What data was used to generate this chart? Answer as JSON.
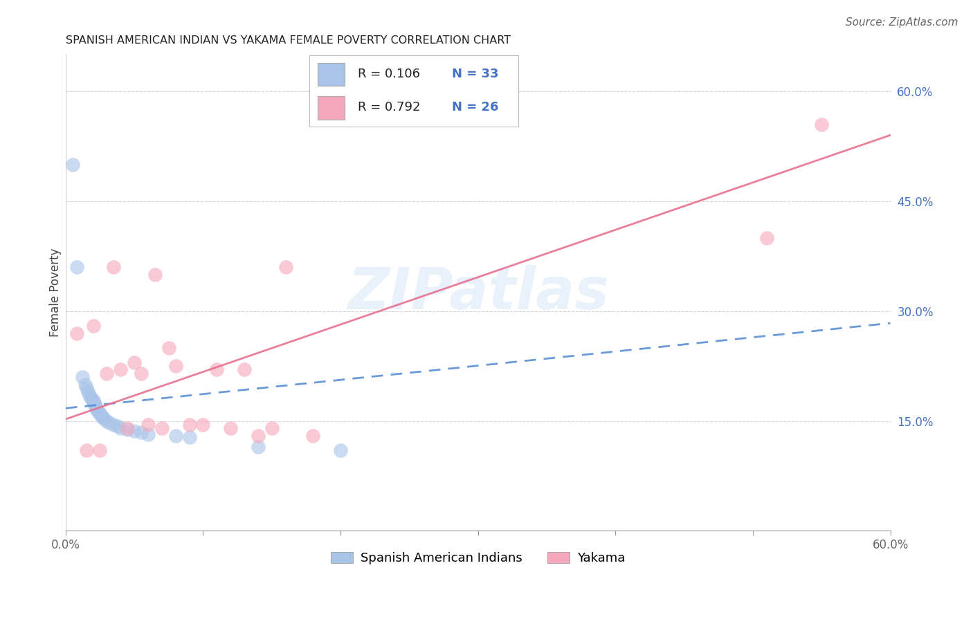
{
  "title": "SPANISH AMERICAN INDIAN VS YAKAMA FEMALE POVERTY CORRELATION CHART",
  "source": "Source: ZipAtlas.com",
  "ylabel": "Female Poverty",
  "x_min": 0.0,
  "x_max": 0.6,
  "y_min": 0.0,
  "y_max": 0.65,
  "x_ticks": [
    0.0,
    0.1,
    0.2,
    0.3,
    0.4,
    0.5,
    0.6
  ],
  "x_tick_labels": [
    "0.0%",
    "",
    "",
    "",
    "",
    "",
    "60.0%"
  ],
  "y_ticks": [
    0.15,
    0.3,
    0.45,
    0.6
  ],
  "y_tick_labels": [
    "15.0%",
    "30.0%",
    "45.0%",
    "60.0%"
  ],
  "watermark_text": "ZIPatlas",
  "blue_color": "#a8c4e8",
  "pink_color": "#f5a8bc",
  "blue_line_color": "#5a8fd4",
  "pink_line_color": "#e87090",
  "label1": "Spanish American Indians",
  "label2": "Yakama",
  "blue_x": [
    0.005,
    0.008,
    0.012,
    0.014,
    0.015,
    0.016,
    0.017,
    0.018,
    0.019,
    0.02,
    0.02,
    0.021,
    0.022,
    0.022,
    0.023,
    0.024,
    0.025,
    0.026,
    0.027,
    0.028,
    0.03,
    0.032,
    0.035,
    0.038,
    0.04,
    0.045,
    0.05,
    0.055,
    0.06,
    0.08,
    0.09,
    0.14,
    0.2
  ],
  "blue_y": [
    0.5,
    0.36,
    0.21,
    0.2,
    0.195,
    0.19,
    0.185,
    0.182,
    0.18,
    0.178,
    0.175,
    0.173,
    0.17,
    0.168,
    0.165,
    0.163,
    0.16,
    0.158,
    0.155,
    0.153,
    0.15,
    0.148,
    0.145,
    0.143,
    0.14,
    0.138,
    0.136,
    0.134,
    0.132,
    0.13,
    0.128,
    0.115,
    0.11
  ],
  "pink_x": [
    0.008,
    0.015,
    0.02,
    0.025,
    0.03,
    0.035,
    0.04,
    0.045,
    0.05,
    0.055,
    0.06,
    0.065,
    0.07,
    0.075,
    0.08,
    0.09,
    0.1,
    0.11,
    0.12,
    0.13,
    0.14,
    0.15,
    0.16,
    0.18,
    0.51,
    0.55
  ],
  "pink_y": [
    0.27,
    0.11,
    0.28,
    0.11,
    0.215,
    0.36,
    0.22,
    0.14,
    0.23,
    0.215,
    0.145,
    0.35,
    0.14,
    0.25,
    0.225,
    0.145,
    0.145,
    0.22,
    0.14,
    0.22,
    0.13,
    0.14,
    0.36,
    0.13,
    0.4,
    0.555
  ],
  "blue_R": 0.106,
  "blue_N": 33,
  "pink_R": 0.792,
  "pink_N": 26,
  "title_fontsize": 11.5,
  "tick_fontsize": 12,
  "source_fontsize": 11,
  "legend_fontsize": 13,
  "ylabel_fontsize": 12
}
